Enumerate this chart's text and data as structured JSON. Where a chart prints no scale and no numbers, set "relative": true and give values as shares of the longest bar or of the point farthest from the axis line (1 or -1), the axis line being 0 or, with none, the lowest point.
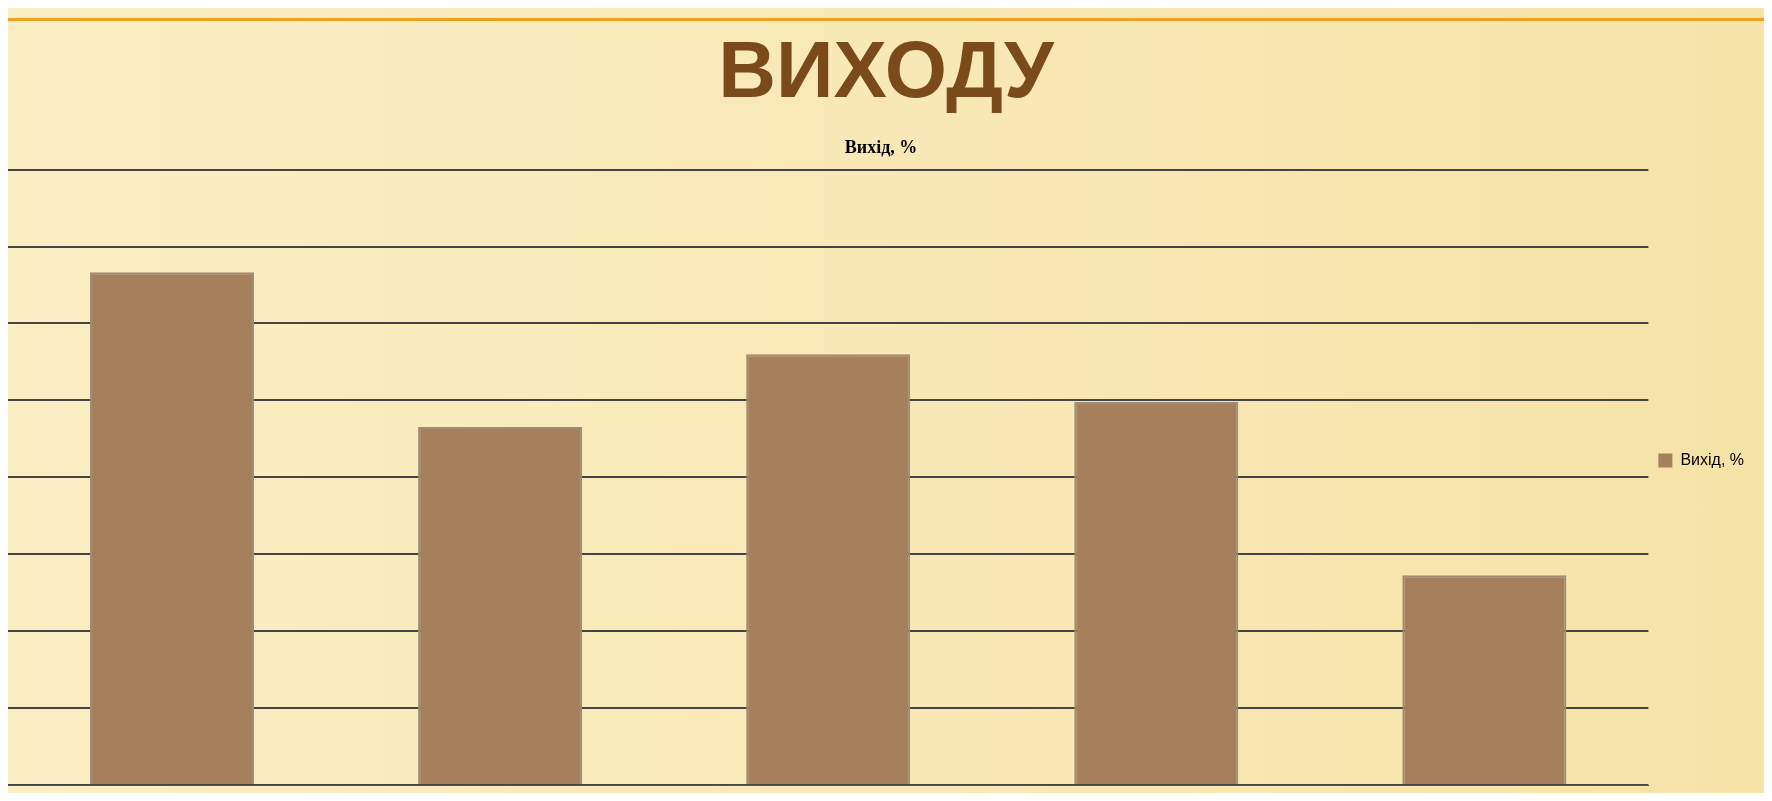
{
  "chart_data": {
    "type": "bar",
    "title": "ВИХОДУ",
    "subtitle": "Вихід, %",
    "categories": [
      null,
      null,
      null,
      null,
      null
    ],
    "series": [
      {
        "name": "Вихід, %",
        "color": "#a67f5d",
        "values": [
          1,
          0.698,
          0.84,
          0.747,
          0.409
        ]
      }
    ],
    "relative": true,
    "grid": "y",
    "legend": "right"
  }
}
